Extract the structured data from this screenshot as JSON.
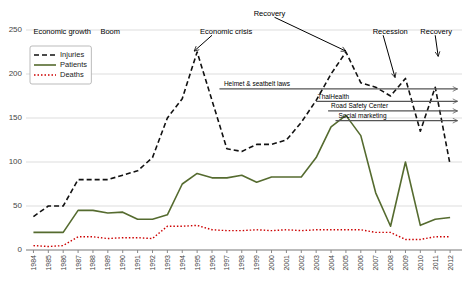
{
  "chart_data": {
    "type": "line",
    "x": [
      1984,
      1985,
      1986,
      1987,
      1988,
      1989,
      1990,
      1991,
      1992,
      1993,
      1994,
      1995,
      1996,
      1997,
      1998,
      1999,
      2000,
      2001,
      2002,
      2003,
      2004,
      2005,
      2006,
      2007,
      2008,
      2009,
      2010,
      2011,
      2012
    ],
    "series": [
      {
        "name": "Injuries",
        "color": "#111111",
        "line_style": "dashed",
        "values": [
          38,
          50,
          50,
          80,
          80,
          80,
          85,
          90,
          105,
          150,
          172,
          225,
          170,
          115,
          112,
          120,
          120,
          125,
          145,
          170,
          200,
          225,
          190,
          185,
          175,
          195,
          135,
          185,
          97
        ]
      },
      {
        "name": "Patients",
        "color": "#556b2f",
        "line_style": "solid",
        "values": [
          20,
          20,
          20,
          45,
          45,
          42,
          43,
          35,
          35,
          40,
          75,
          87,
          82,
          82,
          85,
          77,
          83,
          83,
          83,
          105,
          140,
          153,
          130,
          65,
          27,
          100,
          28,
          35,
          37
        ]
      },
      {
        "name": "Deaths",
        "color": "#cc0000",
        "line_style": "dotted",
        "values": [
          5,
          4,
          5,
          15,
          15,
          13,
          14,
          14,
          13,
          27,
          27,
          28,
          23,
          22,
          22,
          23,
          22,
          23,
          22,
          23,
          23,
          23,
          23,
          20,
          20,
          12,
          12,
          15,
          15
        ]
      }
    ],
    "xlim": [
      1983.5,
      2012.8
    ],
    "xticks": [
      1984,
      1985,
      1986,
      1987,
      1988,
      1989,
      1990,
      1991,
      1992,
      1993,
      1994,
      1995,
      1996,
      1997,
      1998,
      1999,
      2000,
      2001,
      2002,
      2003,
      2004,
      2005,
      2006,
      2007,
      2008,
      2009,
      2010,
      2011,
      2012
    ],
    "ylim": [
      0,
      250
    ],
    "yticks": [
      0,
      50,
      100,
      150,
      200,
      250
    ],
    "grid": true,
    "legend": "upper left",
    "annotations": [
      {
        "text": "Economic growth",
        "x": 1984.0,
        "y": 244
      },
      {
        "text": "Boom",
        "x": 1988.5,
        "y": 244
      },
      {
        "text": "Economic crisis",
        "x": 1995.2,
        "y": 244,
        "arrow_from": [
          1996.0,
          244
        ],
        "arrow_to": [
          1994.8,
          226
        ]
      },
      {
        "text": "Recovery",
        "x": 1998.8,
        "y": 244,
        "arrow_from": [
          2000.2,
          244
        ],
        "arrow_to": [
          2005.0,
          226
        ]
      },
      {
        "text": "Recession",
        "x": 2006.8,
        "y": 244,
        "arrow_from": [
          2007.5,
          244
        ],
        "arrow_to": [
          2008.3,
          196
        ]
      },
      {
        "text": "Recovery",
        "x": 2010.0,
        "y": 244,
        "arrow_from": [
          2011.0,
          244
        ],
        "arrow_to": [
          2011.2,
          220
        ]
      },
      {
        "text": "Helmet & seatbelt laws",
        "x": 1996.8,
        "y": 183,
        "arrow_from": [
          1996.5,
          183
        ],
        "arrow_to": [
          2012.5,
          183
        ]
      },
      {
        "text": "ThaiHealth",
        "x": 2003.1,
        "y": 169,
        "arrow_from": [
          2003.0,
          169
        ],
        "arrow_to": [
          2012.5,
          169
        ]
      },
      {
        "text": "Road Safety Center",
        "x": 2004.0,
        "y": 158,
        "arrow_from": [
          2003.8,
          158
        ],
        "arrow_to": [
          2012.5,
          158
        ]
      },
      {
        "text": "Social marketing",
        "x": 2004.5,
        "y": 147,
        "arrow_from": [
          2004.3,
          147
        ],
        "arrow_to": [
          2012.5,
          147
        ]
      }
    ]
  }
}
